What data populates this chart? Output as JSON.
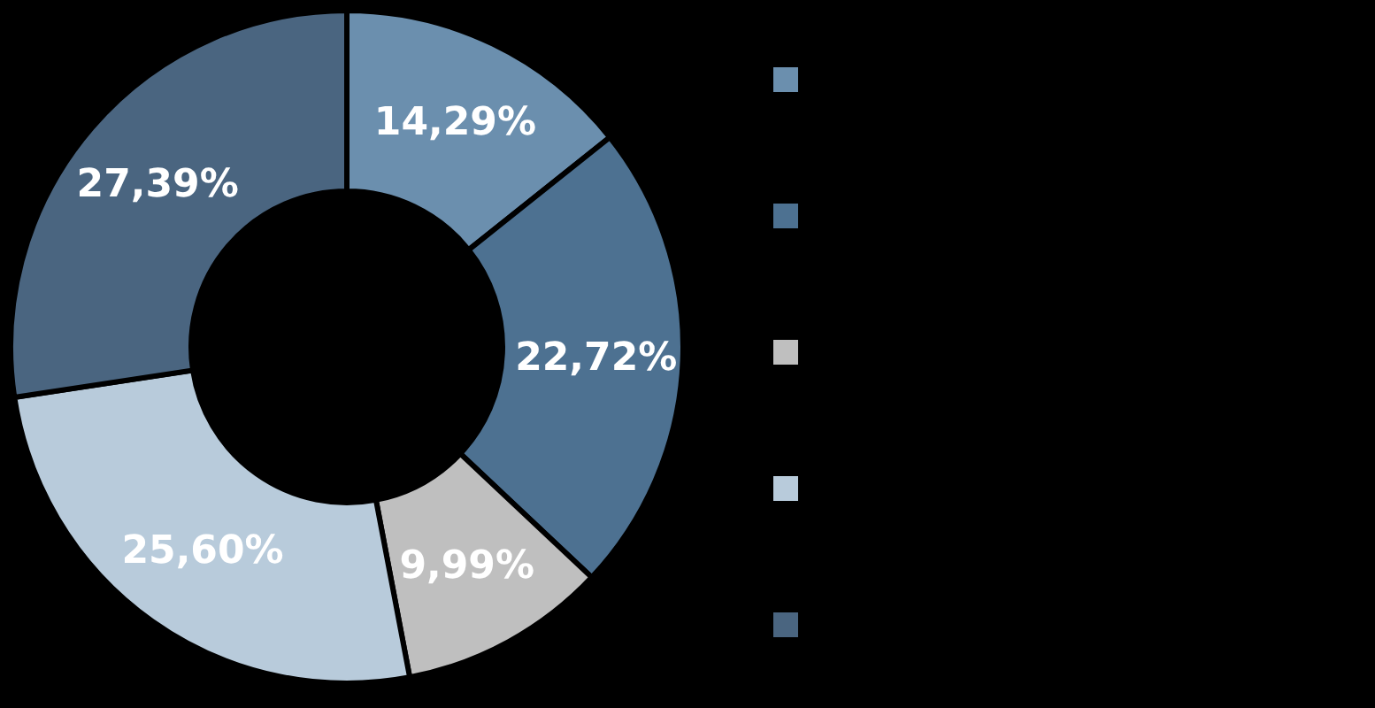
{
  "chart_data": {
    "type": "donut",
    "categories": [
      null,
      null,
      null,
      null,
      null
    ],
    "values": [
      14.29,
      22.72,
      9.99,
      25.6,
      27.39
    ],
    "colors": [
      "#6b8fae",
      "#4d7191",
      "#bfbfbf",
      "#b8cbdb",
      "#4a6580"
    ],
    "value_labels": [
      "14,29%",
      "22,72%",
      "9,99%",
      "25,60%",
      "27,39%"
    ]
  }
}
